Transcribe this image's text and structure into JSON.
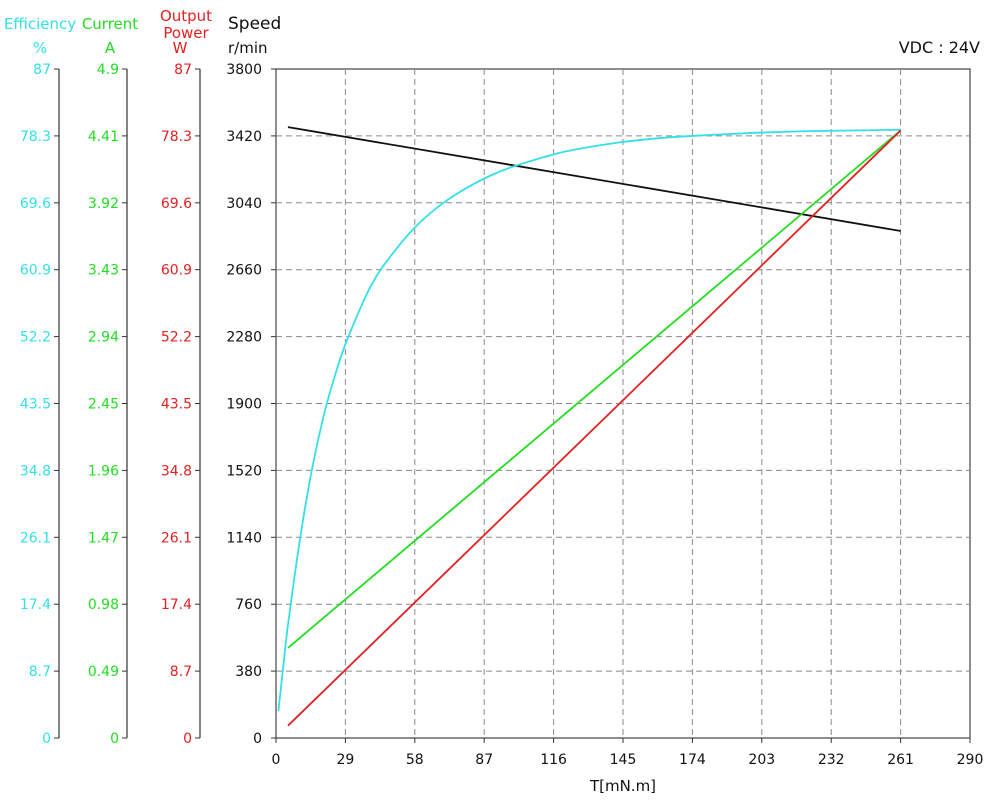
{
  "colors": {
    "efficiency": "#33e0e8",
    "current": "#22dd22",
    "power": "#e22222",
    "speed": "#111111"
  },
  "chart_data": {
    "type": "line",
    "annotation": "VDC : 24V",
    "xlabel": "T[mN.m]",
    "x_ticks": [
      0,
      29,
      58,
      87,
      116,
      145,
      174,
      203,
      232,
      261,
      290
    ],
    "xlim": [
      0,
      290
    ],
    "axes": {
      "speed": {
        "title": "Speed",
        "unit": "r/min",
        "ylim": [
          0,
          3800
        ],
        "ticks": [
          "0",
          "380",
          "760",
          "1140",
          "1520",
          "1900",
          "2280",
          "2660",
          "3040",
          "3420",
          "3800"
        ]
      },
      "efficiency": {
        "title": "Efficiency",
        "unit": "%",
        "ylim": [
          0,
          87
        ],
        "ticks": [
          "0",
          "8.7",
          "17.4",
          "26.1",
          "34.8",
          "43.5",
          "52.2",
          "60.9",
          "69.6",
          "78.3",
          "87"
        ]
      },
      "current": {
        "title": "Current",
        "unit": "A",
        "ylim": [
          0,
          4.9
        ],
        "ticks": [
          "0",
          "0.49",
          "0.98",
          "1.47",
          "1.96",
          "2.45",
          "2.94",
          "3.43",
          "3.92",
          "4.41",
          "4.9"
        ]
      },
      "power": {
        "title_line1": "Output",
        "title_line2": "Power",
        "unit": "W",
        "ylim": [
          0,
          87
        ],
        "ticks": [
          "0",
          "8.7",
          "17.4",
          "26.1",
          "34.8",
          "43.5",
          "52.2",
          "60.9",
          "69.6",
          "78.3",
          "87"
        ]
      }
    },
    "series": [
      {
        "key": "speed",
        "axis": "speed",
        "x": [
          5,
          261
        ],
        "y": [
          3470,
          2880
        ]
      },
      {
        "key": "efficiency",
        "axis": "efficiency",
        "x": [
          1,
          3,
          5,
          10,
          15,
          20,
          25,
          30,
          40,
          50,
          60,
          70,
          80,
          90,
          100,
          120,
          140,
          160,
          180,
          200,
          220,
          240,
          261
        ],
        "y": [
          3.5,
          9.2,
          14.7,
          25.8,
          34.9,
          42.0,
          47.5,
          52.0,
          59.0,
          63.5,
          67.0,
          69.6,
          71.6,
          73.2,
          74.4,
          76.2,
          77.3,
          78.0,
          78.4,
          78.7,
          78.9,
          79.0,
          79.1
        ]
      },
      {
        "key": "current",
        "axis": "current",
        "x": [
          5,
          261
        ],
        "y": [
          0.66,
          4.45
        ]
      },
      {
        "key": "power",
        "axis": "power",
        "x": [
          5,
          261
        ],
        "y": [
          1.6,
          79.0
        ]
      }
    ]
  }
}
